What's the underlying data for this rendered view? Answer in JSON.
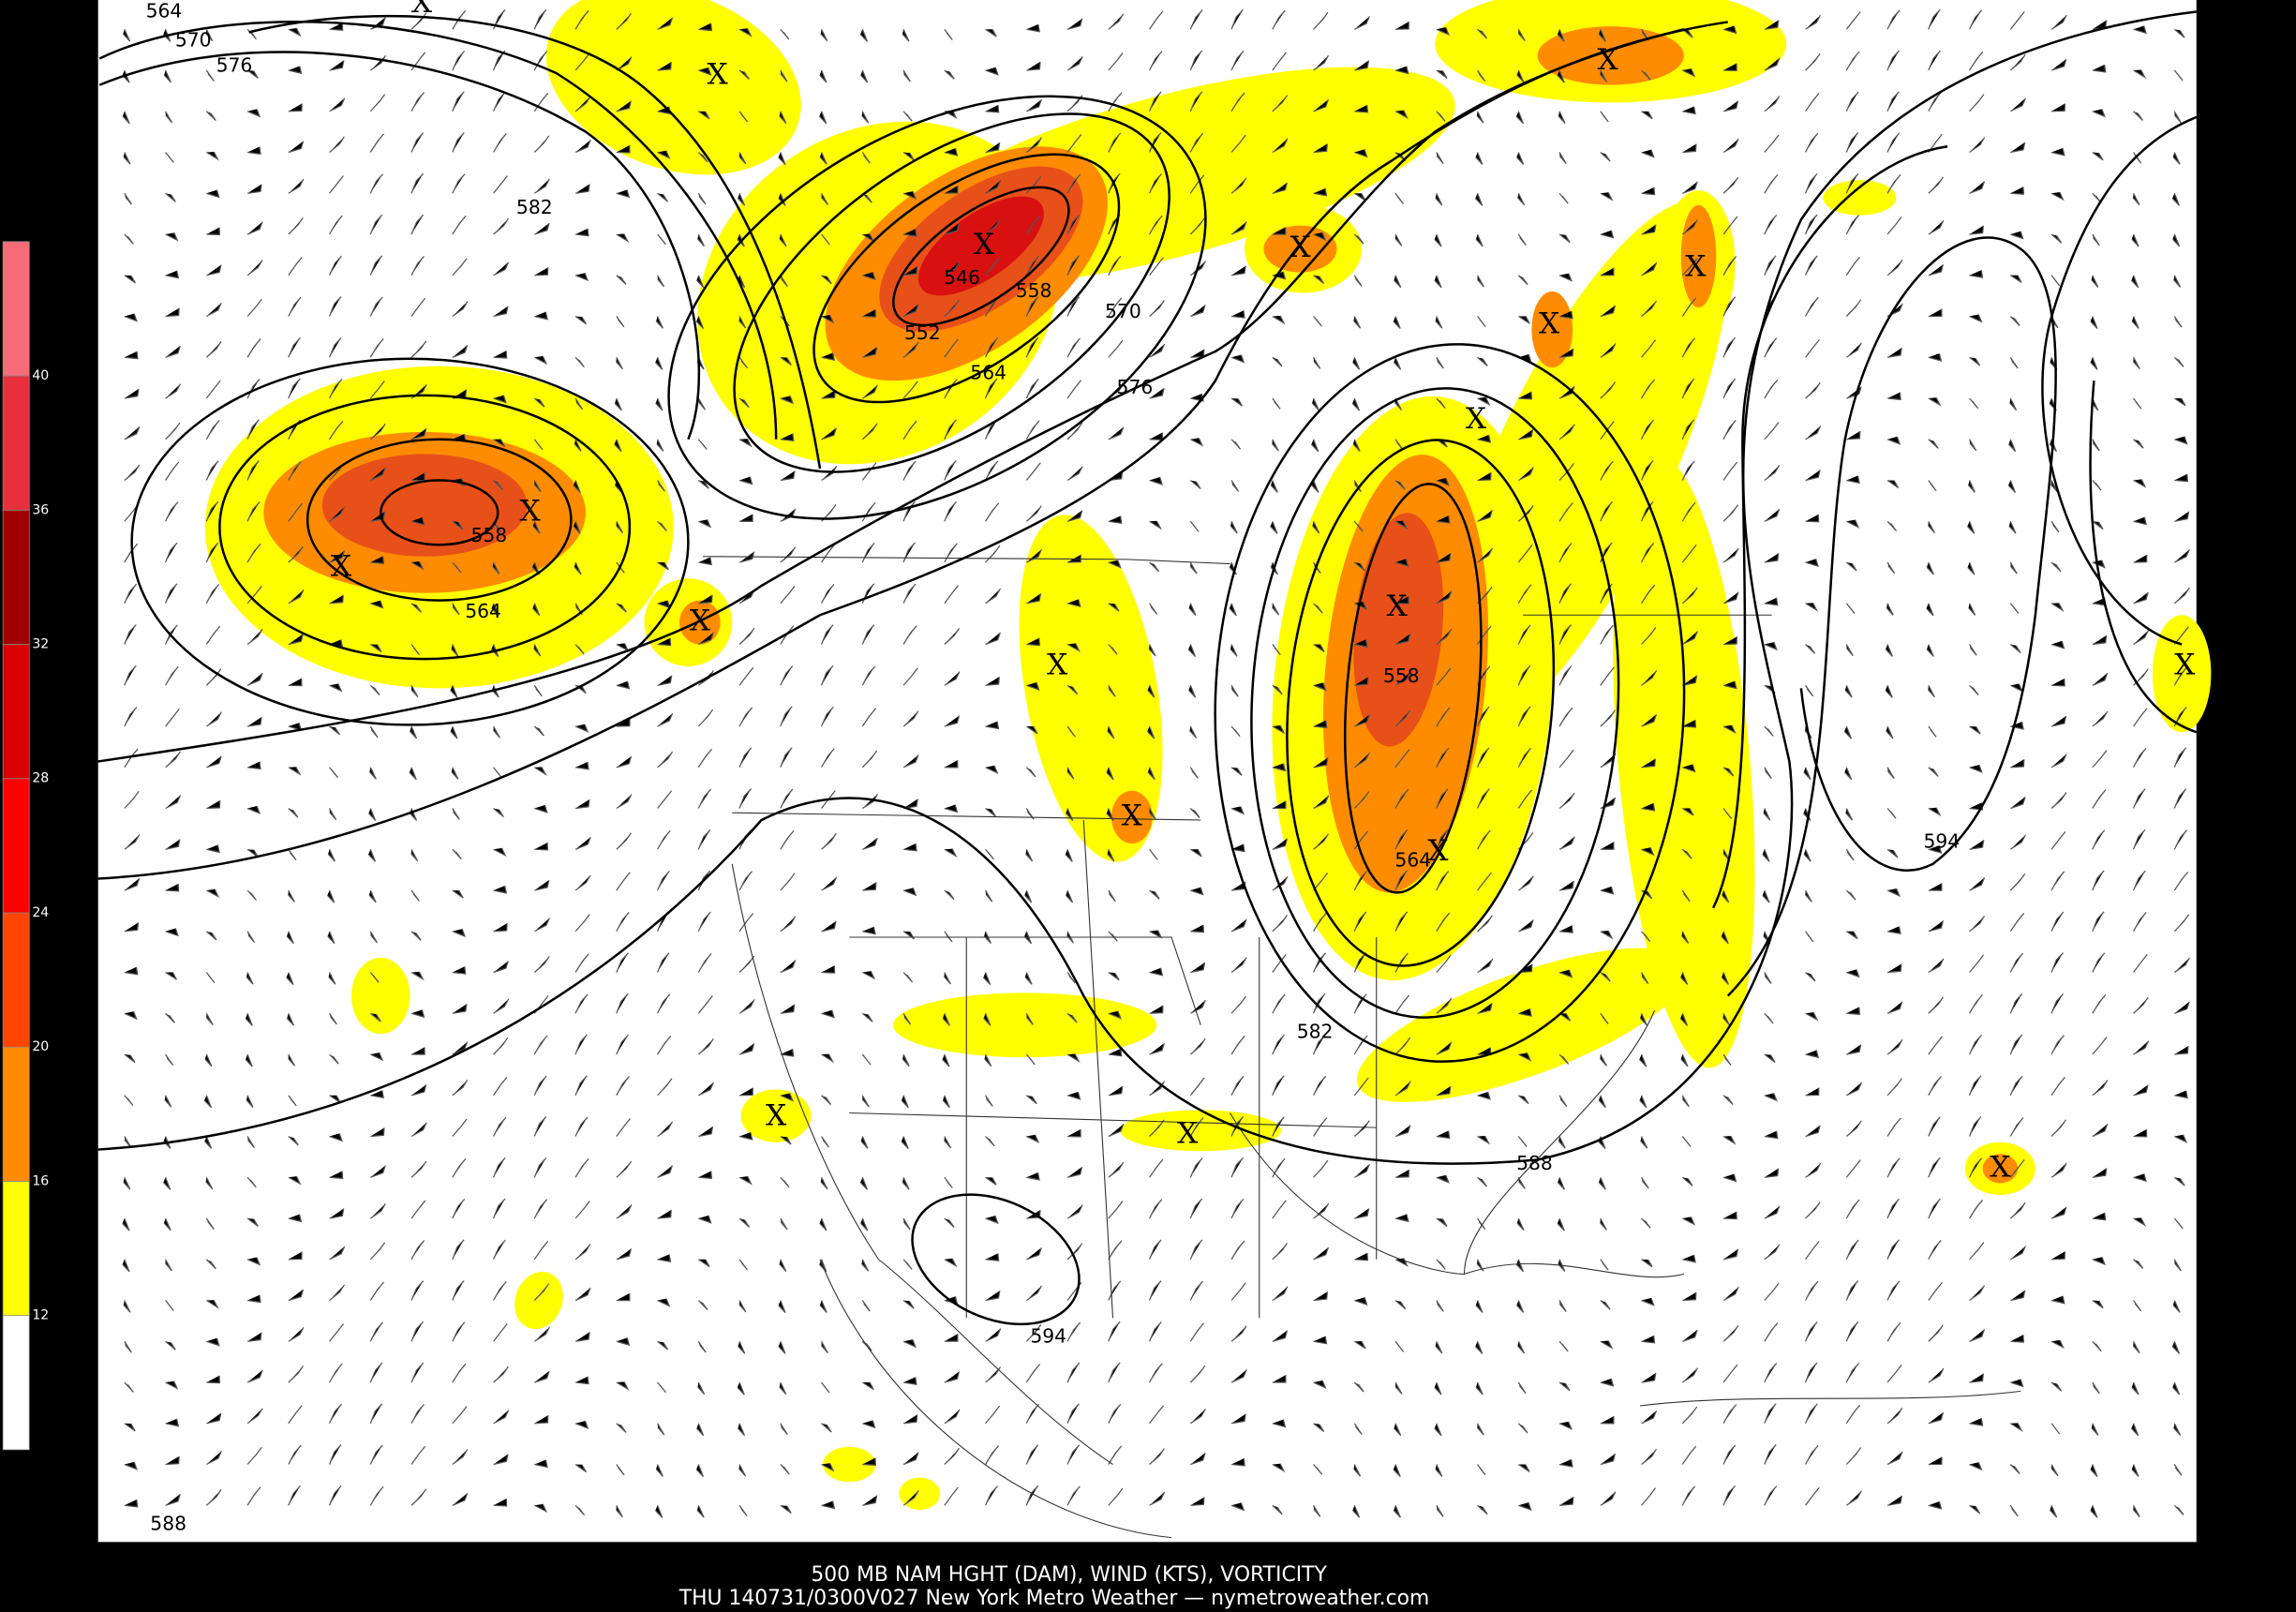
{
  "map": {
    "legend": {
      "labels": [
        12,
        16,
        20,
        24,
        28,
        32,
        36,
        40
      ],
      "colors": [
        "#ffffff",
        "#ffff00",
        "#ff8c00",
        "#ff4500",
        "#ff0000",
        "#d80000",
        "#a00000",
        "#e8303c",
        "#f56c78"
      ]
    },
    "contour_labels": [
      564,
      570,
      576,
      582,
      546,
      558,
      552,
      564,
      570,
      576,
      558,
      564,
      558,
      564,
      582,
      588,
      594,
      594,
      588
    ],
    "markers": [
      "X",
      "X",
      "X",
      "X",
      "X",
      "X",
      "X",
      "X",
      "X",
      "X",
      "X",
      "X",
      "X",
      "X",
      "X",
      "X",
      "X",
      "X",
      "X"
    ],
    "footer": {
      "line1": "500 MB NAM HGHT (DAM), WIND (KTS), VORTICITY",
      "line2": "THU 140731/0300V027 New York Metro Weather — nymetroweather.com"
    }
  }
}
